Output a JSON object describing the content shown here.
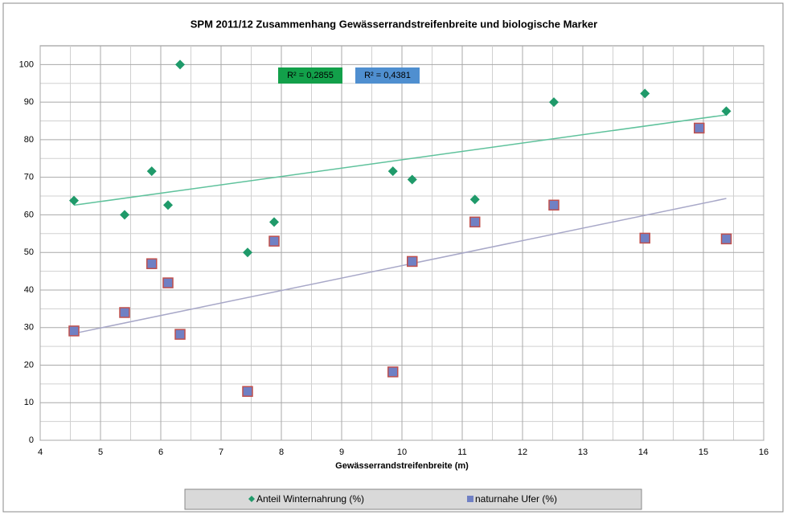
{
  "chart_data": {
    "type": "scatter",
    "title": "SPM 2011/12 Zusammenhang Gewässerrandstreifenbreite und biologische Marker",
    "x_label": "Gewässerrandstreifenbreite (m)",
    "xlim": [
      4,
      16
    ],
    "xticks": [
      4,
      5,
      6,
      7,
      8,
      9,
      10,
      11,
      12,
      13,
      14,
      15,
      16
    ],
    "ylim": [
      0,
      105
    ],
    "yticks": [
      0,
      10,
      20,
      30,
      40,
      50,
      60,
      70,
      80,
      90,
      100
    ],
    "grid": true,
    "legend": "bottom",
    "series": [
      {
        "name": "Anteil Winternahrung (%)",
        "color": "#1f9a6a",
        "marker": "diamond",
        "trendline_color": "#5fc29c",
        "r2_label": "R² = 0,2855",
        "r2_color": "#12a04a",
        "x": [
          4.56,
          5.4,
          5.85,
          6.12,
          6.32,
          7.44,
          7.88,
          9.85,
          10.17,
          11.21,
          12.52,
          14.03,
          15.38
        ],
        "values": [
          63.8,
          60,
          71.6,
          62.6,
          100,
          50,
          58.1,
          71.6,
          69.4,
          64.1,
          90,
          92.3,
          87.6
        ]
      },
      {
        "name": "naturnahe Ufer (%)",
        "color": "#7080c4",
        "marker": "square",
        "edge_color": "#c0504d",
        "trendline_color": "#a8a8c8",
        "r2_label": "R² = 0,4381",
        "r2_color": "#4f8fd0",
        "x": [
          4.56,
          5.4,
          5.85,
          6.12,
          6.32,
          7.44,
          7.88,
          9.85,
          10.17,
          11.21,
          12.52,
          14.03,
          14.93,
          15.38
        ],
        "values": [
          29.1,
          34,
          47,
          41.9,
          28.2,
          13,
          53,
          18.2,
          47.6,
          58.1,
          62.6,
          53.8,
          83.1,
          53.6
        ]
      }
    ]
  }
}
